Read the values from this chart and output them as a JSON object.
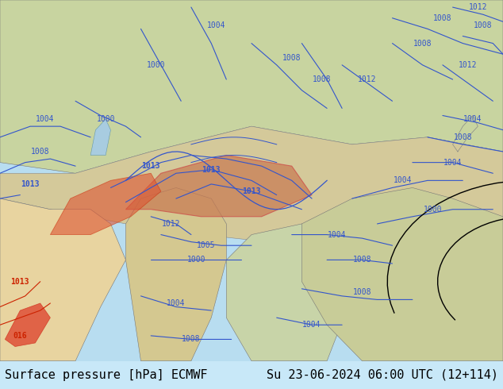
{
  "title_left": "Surface pressure [hPa] ECMWF",
  "title_right": "Su 23-06-2024 06:00 UTC (12+114)",
  "bg_color": "#c8e8f8",
  "bottom_bar_color": "#d0d0d0",
  "text_color": "#000000",
  "font_size_caption": 11,
  "fig_width": 6.34,
  "fig_height": 4.9,
  "dpi": 100
}
